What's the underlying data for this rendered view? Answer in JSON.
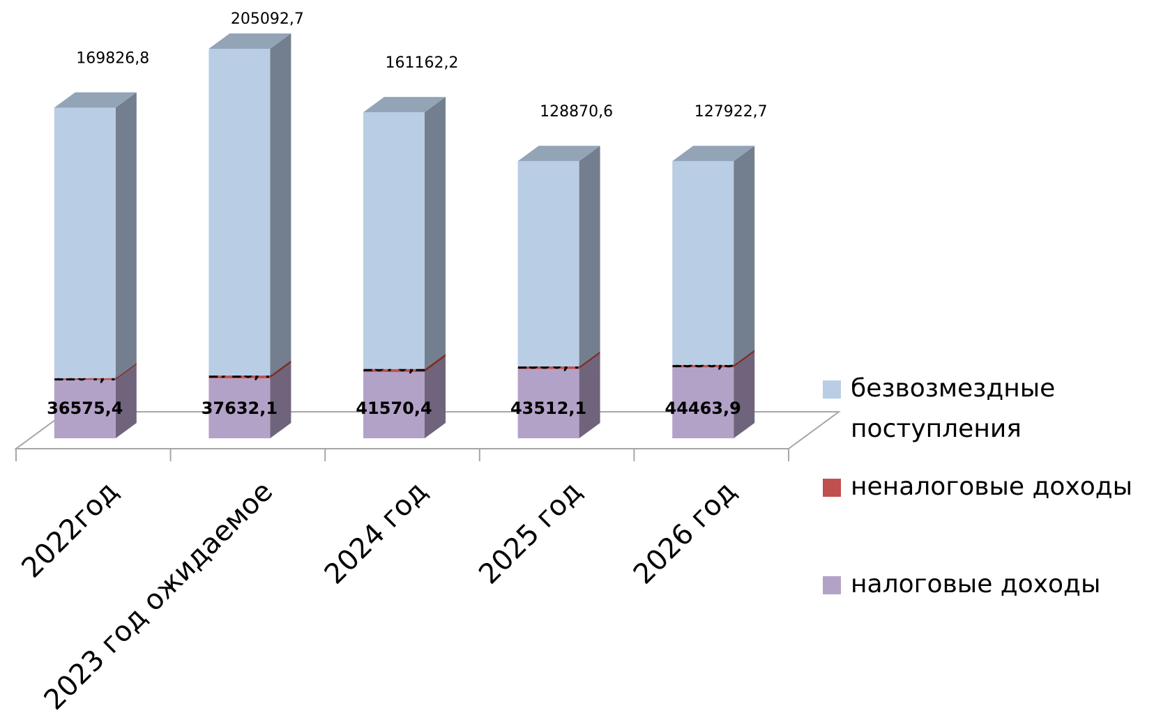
{
  "chart_data": {
    "type": "bar3d_stacked",
    "categories": [
      "2022год",
      "2023 год ожидаемое",
      "2024 год",
      "2025 год",
      "2026 год"
    ],
    "series": [
      {
        "name": "налоговые доходы",
        "color": "#b3a2c7",
        "values": [
          36575.4,
          37632.1,
          41570.4,
          43512.1,
          44463.9
        ],
        "value_labels": [
          "36575,4",
          "37632,1",
          "41570,4",
          "43512,1",
          "44463,9"
        ]
      },
      {
        "name": "неналоговые доходы",
        "color": "#c0504d",
        "values": [
          1104.4,
          1716.4,
          1870.2,
          1550.4,
          1556.3
        ],
        "value_labels": [
          "1104,4",
          "1716,4",
          "1870,2",
          "1550,4",
          "1556,3"
        ]
      },
      {
        "name": "безвозмездные поступления",
        "color": "#b9cde5",
        "values": [
          169826.8,
          205092.7,
          161162.2,
          128870.6,
          127922.7
        ],
        "value_labels": [
          "169826,8",
          "205092,7",
          "161162,2",
          "128870,6",
          "127922,7"
        ]
      }
    ],
    "legend": "right"
  }
}
